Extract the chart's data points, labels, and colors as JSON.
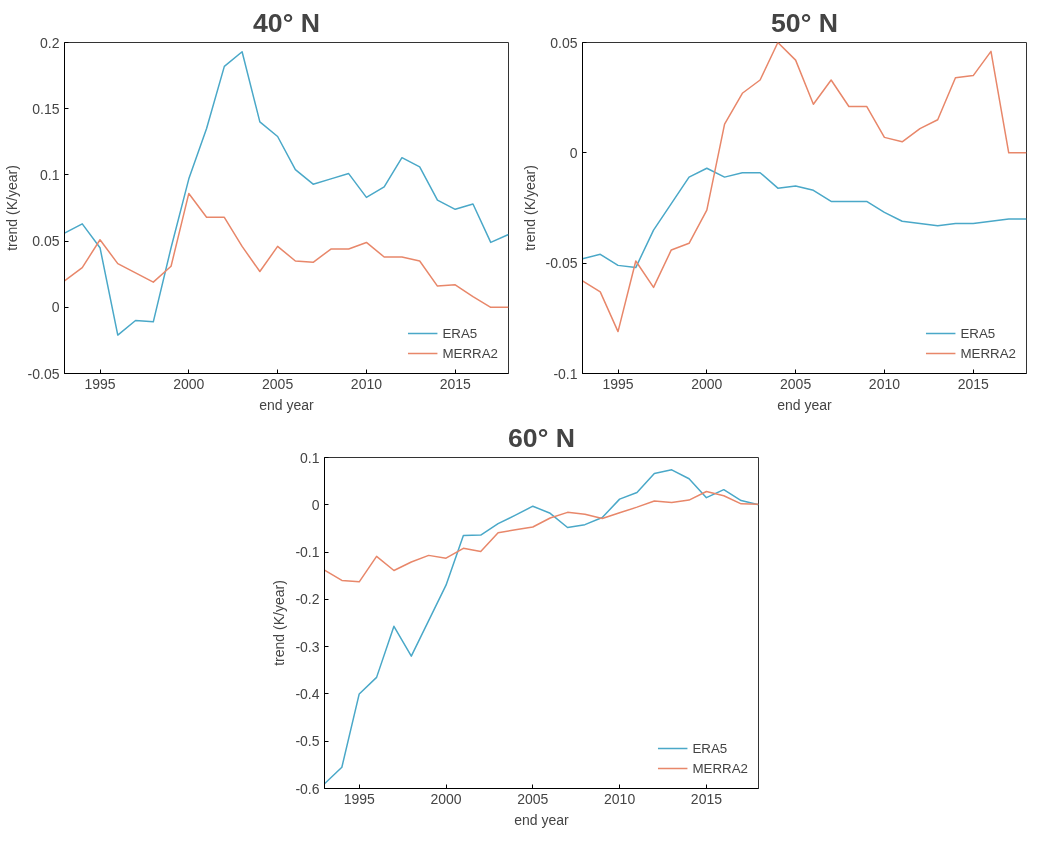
{
  "chart_data": [
    {
      "type": "line",
      "title": "40° N",
      "xlabel": "end year",
      "ylabel": "trend (K/year)",
      "x": [
        1993,
        1994,
        1995,
        1996,
        1997,
        1998,
        1999,
        2000,
        2001,
        2002,
        2003,
        2004,
        2005,
        2006,
        2007,
        2008,
        2009,
        2010,
        2011,
        2012,
        2013,
        2014,
        2015,
        2016,
        2017,
        2018
      ],
      "xlim": [
        1993,
        2018
      ],
      "xticks": [
        1995,
        2000,
        2005,
        2010,
        2015
      ],
      "ylim": [
        -0.05,
        0.2
      ],
      "yticks": [
        -0.05,
        0,
        0.05,
        0.1,
        0.15,
        0.2
      ],
      "grid": false,
      "legend": "bottom right",
      "series": [
        {
          "name": "ERA5",
          "color": "#4aa8c8",
          "values": [
            0.056,
            0.063,
            0.045,
            -0.021,
            -0.01,
            -0.011,
            0.045,
            0.097,
            0.135,
            0.182,
            0.193,
            0.14,
            0.129,
            0.104,
            0.093,
            0.097,
            0.101,
            0.083,
            0.091,
            0.113,
            0.106,
            0.081,
            0.074,
            0.078,
            0.049,
            0.055
          ]
        },
        {
          "name": "MERRA2",
          "color": "#e8876a",
          "values": [
            0.02,
            0.03,
            0.051,
            0.033,
            0.026,
            0.019,
            0.031,
            0.086,
            0.068,
            0.068,
            0.046,
            0.027,
            0.046,
            0.035,
            0.034,
            0.044,
            0.044,
            0.049,
            0.038,
            0.038,
            0.035,
            0.016,
            0.017,
            0.008,
            0.0,
            0.0
          ]
        }
      ]
    },
    {
      "type": "line",
      "title": "50° N",
      "xlabel": "end year",
      "ylabel": "trend (K/year)",
      "x": [
        1993,
        1994,
        1995,
        1996,
        1997,
        1998,
        1999,
        2000,
        2001,
        2002,
        2003,
        2004,
        2005,
        2006,
        2007,
        2008,
        2009,
        2010,
        2011,
        2012,
        2013,
        2014,
        2015,
        2016,
        2017,
        2018
      ],
      "xlim": [
        1993,
        2018
      ],
      "xticks": [
        1995,
        2000,
        2005,
        2010,
        2015
      ],
      "ylim": [
        -0.1,
        0.05
      ],
      "yticks": [
        -0.1,
        -0.05,
        0,
        0.05
      ],
      "grid": false,
      "legend": "bottom right",
      "series": [
        {
          "name": "ERA5",
          "color": "#4aa8c8",
          "values": [
            -0.048,
            -0.046,
            -0.051,
            -0.052,
            -0.035,
            -0.023,
            -0.011,
            -0.007,
            -0.011,
            -0.009,
            -0.009,
            -0.016,
            -0.015,
            -0.017,
            -0.022,
            -0.022,
            -0.022,
            -0.027,
            -0.031,
            -0.032,
            -0.033,
            -0.032,
            -0.032,
            -0.031,
            -0.03,
            -0.03
          ]
        },
        {
          "name": "MERRA2",
          "color": "#e8876a",
          "values": [
            -0.058,
            -0.063,
            -0.081,
            -0.049,
            -0.061,
            -0.044,
            -0.041,
            -0.026,
            0.013,
            0.027,
            0.033,
            0.05,
            0.042,
            0.022,
            0.033,
            0.021,
            0.021,
            0.007,
            0.005,
            0.011,
            0.015,
            0.034,
            0.035,
            0.046,
            0.0,
            0.0
          ]
        }
      ]
    },
    {
      "type": "line",
      "title": "60° N",
      "xlabel": "end year",
      "ylabel": "trend (K/year)",
      "x": [
        1993,
        1994,
        1995,
        1996,
        1997,
        1998,
        1999,
        2000,
        2001,
        2002,
        2003,
        2004,
        2005,
        2006,
        2007,
        2008,
        2009,
        2010,
        2011,
        2012,
        2013,
        2014,
        2015,
        2016,
        2017,
        2018
      ],
      "xlim": [
        1993,
        2018
      ],
      "xticks": [
        1995,
        2000,
        2005,
        2010,
        2015
      ],
      "ylim": [
        -0.6,
        0.1
      ],
      "yticks": [
        -0.6,
        -0.5,
        -0.4,
        -0.3,
        -0.2,
        -0.1,
        0,
        0.1
      ],
      "grid": false,
      "legend": "bottom right",
      "series": [
        {
          "name": "ERA5",
          "color": "#4aa8c8",
          "values": [
            -0.59,
            -0.555,
            -0.4,
            -0.365,
            -0.257,
            -0.32,
            -0.245,
            -0.17,
            -0.065,
            -0.064,
            -0.04,
            -0.022,
            -0.003,
            -0.018,
            -0.048,
            -0.042,
            -0.027,
            0.012,
            0.026,
            0.066,
            0.074,
            0.055,
            0.015,
            0.032,
            0.009,
            0.0
          ]
        },
        {
          "name": "MERRA2",
          "color": "#e8876a",
          "values": [
            -0.138,
            -0.16,
            -0.163,
            -0.109,
            -0.139,
            -0.121,
            -0.107,
            -0.113,
            -0.092,
            -0.099,
            -0.059,
            -0.053,
            -0.047,
            -0.028,
            -0.016,
            -0.02,
            -0.029,
            -0.017,
            -0.005,
            0.008,
            0.005,
            0.01,
            0.028,
            0.019,
            0.002,
            0.001
          ]
        }
      ]
    }
  ]
}
